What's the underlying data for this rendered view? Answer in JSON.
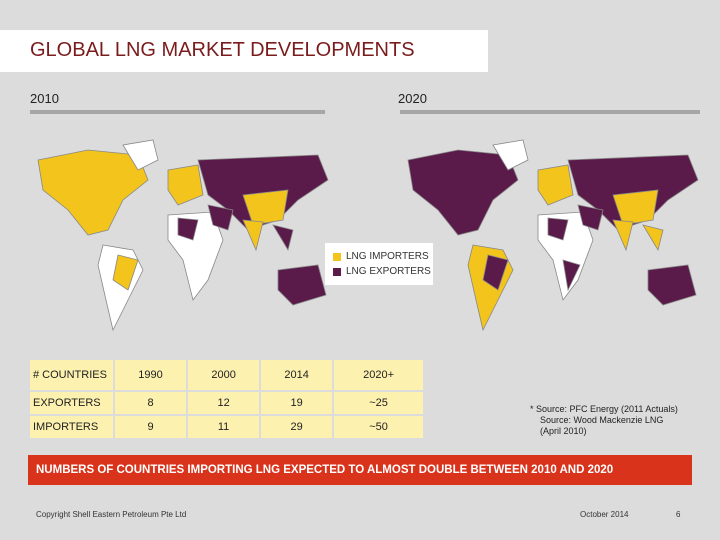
{
  "title": "GLOBAL LNG MARKET DEVELOPMENTS",
  "years": [
    "2010",
    "2020"
  ],
  "legend": [
    "LNG IMPORTERS",
    "LNG EXPORTERS"
  ],
  "table": {
    "header": [
      "# COUNTRIES",
      "1990",
      "2000",
      "2014",
      "2020+"
    ],
    "rows": [
      [
        "EXPORTERS",
        8,
        12,
        19,
        "~25"
      ],
      [
        "IMPORTERS",
        9,
        11,
        29,
        "~50"
      ]
    ]
  },
  "notes": [
    "* Source: PFC Energy (2011 Actuals)",
    "Source: Wood Mackenzie LNG (April 2010)"
  ],
  "banner": "NUMBERS OF COUNTRIES IMPORTING LNG EXPECTED TO ALMOST DOUBLE BETWEEN 2010 AND 2020",
  "footer": {
    "copyright": "Copyright Shell Eastern Petroleum Pte Ltd",
    "date": "October 2014",
    "page": 6
  }
}
